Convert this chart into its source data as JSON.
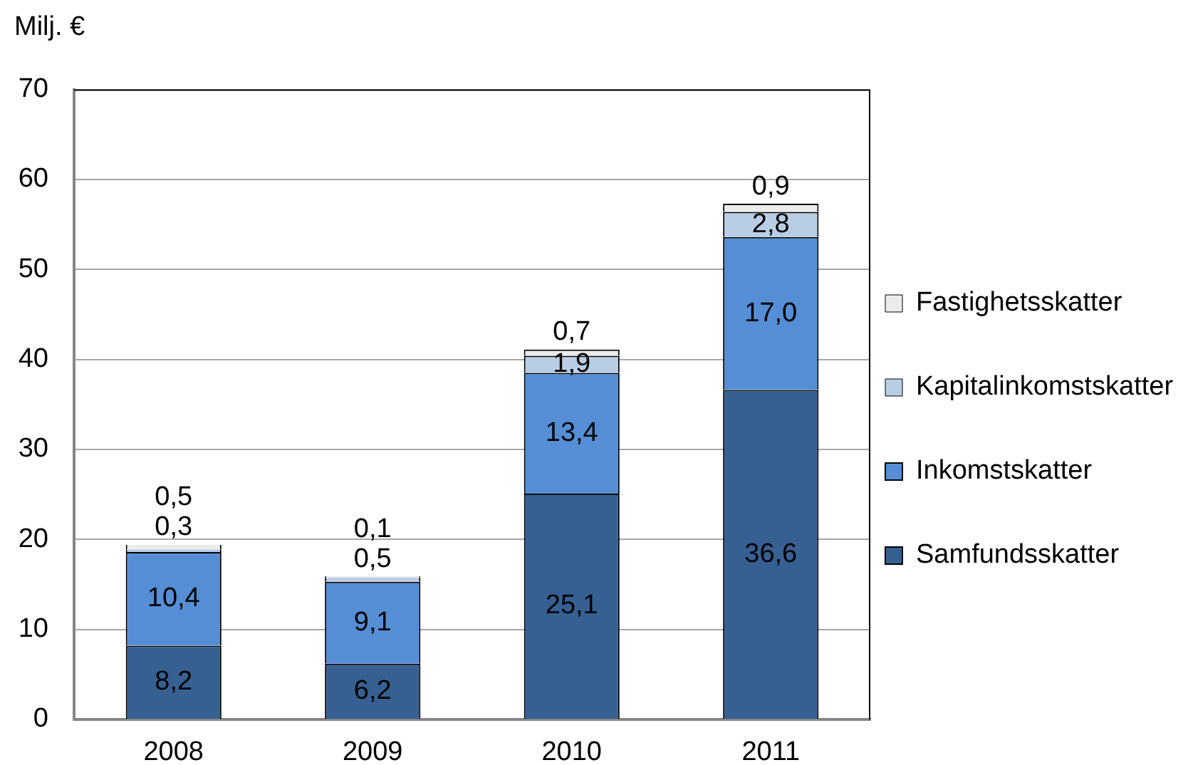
{
  "chart_data": {
    "type": "bar",
    "ylabel": "Milj. €",
    "categories": [
      "2008",
      "2009",
      "2010",
      "2011"
    ],
    "stacked": true,
    "ylim": [
      0,
      70
    ],
    "yticks": [
      0,
      10,
      20,
      30,
      40,
      50,
      60,
      70
    ],
    "grid": "y",
    "legend": "right",
    "series": [
      {
        "name": "Samfundsskatter",
        "color": "#376092",
        "values": [
          8.2,
          6.2,
          25.1,
          36.6
        ],
        "value_labels": [
          "8,2",
          "6,2",
          "25,1",
          "36,6"
        ]
      },
      {
        "name": "Inkomstskatter",
        "color": "#558ed5",
        "values": [
          10.4,
          9.1,
          13.4,
          17.0
        ],
        "value_labels": [
          "10,4",
          "9,1",
          "13,4",
          "17,0"
        ]
      },
      {
        "name": "Kapitalinkomstskatter",
        "color": "#b9cde5",
        "values": [
          0.3,
          0.5,
          1.9,
          2.8
        ],
        "value_labels": [
          "0,3",
          "0,5",
          "1,9",
          "2,8"
        ]
      },
      {
        "name": "Fastighetsskatter",
        "color": "#ebebeb",
        "values": [
          0.5,
          0.1,
          0.7,
          0.9
        ],
        "value_labels": [
          "0,5",
          "0,1",
          "0,7",
          "0,9"
        ]
      }
    ]
  }
}
